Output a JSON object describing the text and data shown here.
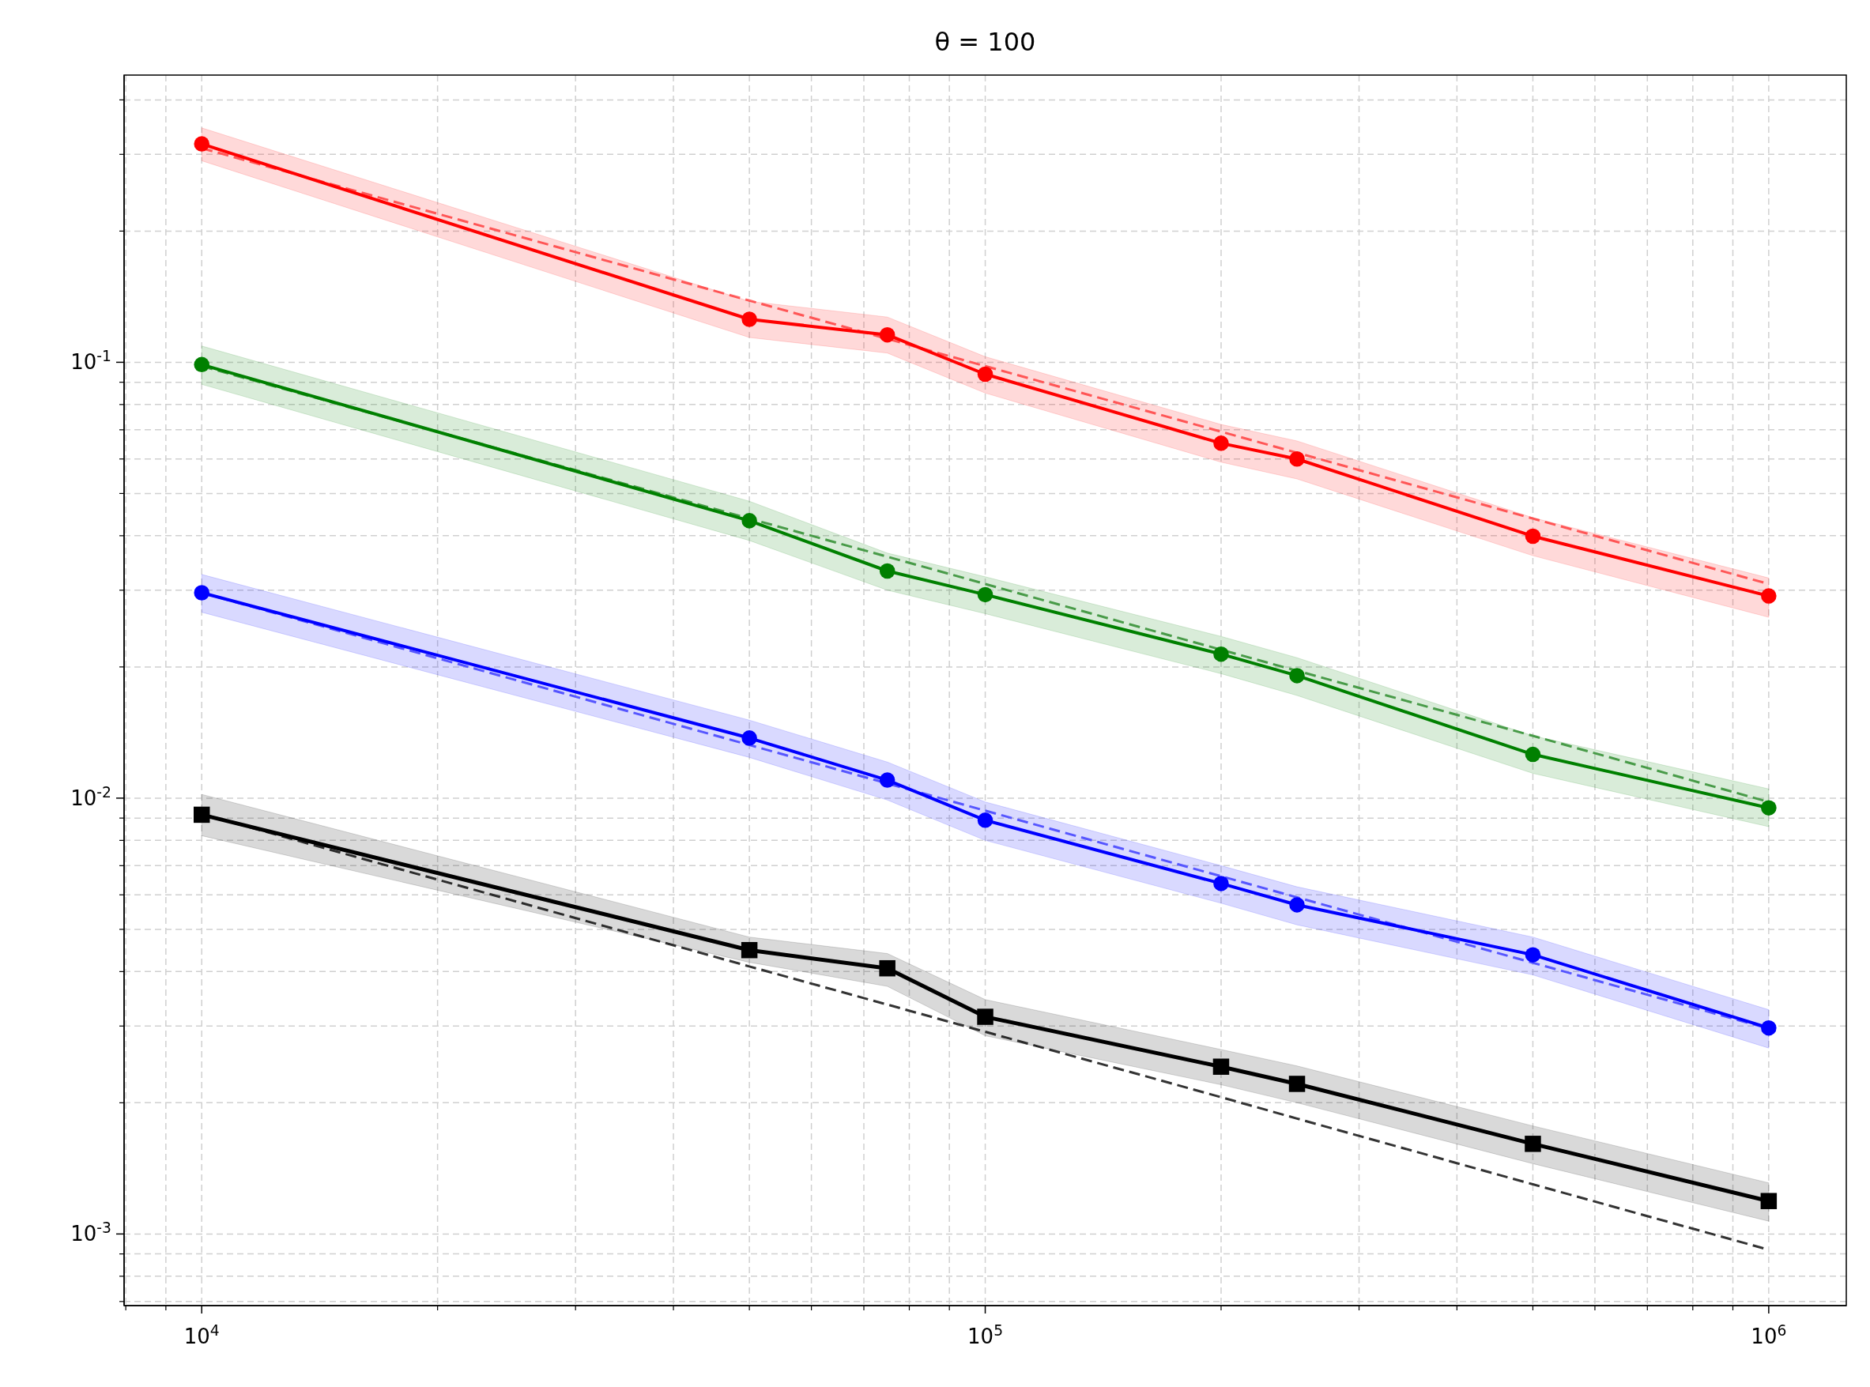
{
  "chart_data": {
    "type": "line",
    "title": "θ = 100",
    "log": "xy",
    "grid": true,
    "line_style": "solid",
    "xlim": [
      7960,
      1256000
    ],
    "ylim": [
      0.000685,
      0.456
    ],
    "xticks": [
      {
        "value": 8000,
        "label": null
      },
      {
        "value": 9000,
        "label": null
      },
      {
        "value": 10000,
        "label": "10$^{4}$"
      },
      {
        "value": 20000,
        "label": null
      },
      {
        "value": 30000,
        "label": null
      },
      {
        "value": 40000,
        "label": null
      },
      {
        "value": 50000,
        "label": null
      },
      {
        "value": 60000,
        "label": null
      },
      {
        "value": 70000,
        "label": null
      },
      {
        "value": 80000,
        "label": null
      },
      {
        "value": 90000,
        "label": null
      },
      {
        "value": 100000,
        "label": "10$^{5}$"
      },
      {
        "value": 200000,
        "label": null
      },
      {
        "value": 300000,
        "label": null
      },
      {
        "value": 400000,
        "label": null
      },
      {
        "value": 500000,
        "label": null
      },
      {
        "value": 600000,
        "label": null
      },
      {
        "value": 700000,
        "label": null
      },
      {
        "value": 800000,
        "label": null
      },
      {
        "value": 900000,
        "label": null
      },
      {
        "value": 1000000,
        "label": "10$^{6}$"
      }
    ],
    "yticks": [
      {
        "value": 0.0007,
        "label": null
      },
      {
        "value": 0.0008,
        "label": null
      },
      {
        "value": 0.0009,
        "label": null
      },
      {
        "value": 0.001,
        "label": "10$^{-3}$"
      },
      {
        "value": 0.002,
        "label": null
      },
      {
        "value": 0.003,
        "label": null
      },
      {
        "value": 0.004,
        "label": null
      },
      {
        "value": 0.005,
        "label": null
      },
      {
        "value": 0.006,
        "label": null
      },
      {
        "value": 0.007,
        "label": null
      },
      {
        "value": 0.008,
        "label": null
      },
      {
        "value": 0.009,
        "label": null
      },
      {
        "value": 0.01,
        "label": "10$^{-2}$"
      },
      {
        "value": 0.02,
        "label": null
      },
      {
        "value": 0.03,
        "label": null
      },
      {
        "value": 0.04,
        "label": null
      },
      {
        "value": 0.05,
        "label": null
      },
      {
        "value": 0.06,
        "label": null
      },
      {
        "value": 0.07,
        "label": null
      },
      {
        "value": 0.08,
        "label": null
      },
      {
        "value": 0.09,
        "label": null
      },
      {
        "value": 0.1,
        "label": "10$^{-1}$"
      },
      {
        "value": 0.2,
        "label": null
      },
      {
        "value": 0.3,
        "label": null
      },
      {
        "value": 0.4,
        "label": null
      }
    ],
    "x": [
      10000,
      50000,
      75000,
      100000,
      200000,
      250000,
      500000,
      1000000
    ],
    "series": [
      {
        "color": "#ff6666",
        "type": "line",
        "line_style": "dashed",
        "marker": "none",
        "values": [
          0.31,
          0.1386,
          0.1132,
          0.098,
          0.0693,
          0.062,
          0.0438,
          0.031
        ]
      },
      {
        "color": "#ff0000",
        "marker": "circle",
        "values": [
          0.317,
          0.1255,
          0.1156,
          0.0939,
          0.0652,
          0.06,
          0.0399,
          0.0291
        ],
        "lower": [
          0.29,
          0.114,
          0.105,
          0.085,
          0.059,
          0.054,
          0.036,
          0.026
        ],
        "upper": [
          0.345,
          0.138,
          0.127,
          0.103,
          0.072,
          0.066,
          0.044,
          0.032
        ]
      },
      {
        "color": "#55a055",
        "type": "line",
        "line_style": "dashed",
        "marker": "none",
        "values": [
          0.098,
          0.0438,
          0.0358,
          0.031,
          0.0219,
          0.0196,
          0.0139,
          0.0098
        ]
      },
      {
        "color": "#008000",
        "marker": "circle",
        "values": [
          0.0988,
          0.0433,
          0.0332,
          0.0293,
          0.0214,
          0.0191,
          0.0126,
          0.0095
        ],
        "lower": [
          0.089,
          0.039,
          0.03,
          0.0265,
          0.0193,
          0.0172,
          0.0114,
          0.0086
        ],
        "upper": [
          0.109,
          0.048,
          0.0365,
          0.0322,
          0.0235,
          0.021,
          0.0139,
          0.0105
        ]
      },
      {
        "color": "#6666ff",
        "type": "line",
        "line_style": "dashed",
        "marker": "none",
        "values": [
          0.0296,
          0.01324,
          0.01081,
          0.00936,
          0.00662,
          0.00592,
          0.00419,
          0.00296
        ]
      },
      {
        "color": "#0000ff",
        "marker": "circle",
        "values": [
          0.0296,
          0.01374,
          0.011,
          0.0089,
          0.00637,
          0.00569,
          0.00437,
          0.00297
        ],
        "lower": [
          0.0267,
          0.0124,
          0.0099,
          0.008,
          0.00574,
          0.00512,
          0.00393,
          0.00267
        ],
        "upper": [
          0.0326,
          0.0151,
          0.0121,
          0.0098,
          0.007,
          0.00626,
          0.0048,
          0.00327
        ]
      },
      {
        "color": "#333333",
        "type": "line",
        "line_style": "dashed",
        "marker": "none",
        "values": [
          0.0092,
          0.00411,
          0.00336,
          0.00291,
          0.00206,
          0.00184,
          0.0013,
          0.00092
        ]
      },
      {
        "color": "#000000",
        "marker": "square",
        "values": [
          0.00916,
          0.00448,
          0.00407,
          0.00315,
          0.00242,
          0.00221,
          0.00161,
          0.00119
        ],
        "lower": [
          0.0082,
          0.0042,
          0.0037,
          0.00285,
          0.0022,
          0.002,
          0.00145,
          0.00107
        ],
        "upper": [
          0.0102,
          0.0048,
          0.0044,
          0.00345,
          0.00265,
          0.00243,
          0.00177,
          0.00131
        ]
      }
    ]
  }
}
